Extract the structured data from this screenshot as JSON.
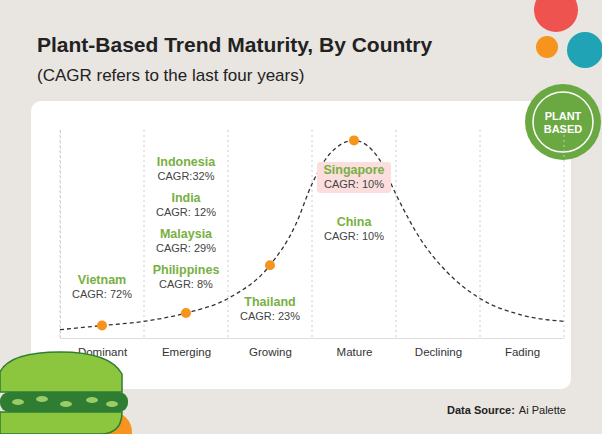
{
  "chart_data": {
    "type": "line",
    "title": "Plant-Based Trend Maturity, By Country",
    "subtitle": "(CAGR refers to the last four years)",
    "xlim": [
      0,
      6
    ],
    "xticks": [
      {
        "value": 0.5,
        "label": "Dominant"
      },
      {
        "value": 1.5,
        "label": "Emerging"
      },
      {
        "value": 2.5,
        "label": "Growing"
      },
      {
        "value": 3.5,
        "label": "Mature"
      },
      {
        "value": 4.5,
        "label": "Declining"
      },
      {
        "value": 5.5,
        "label": "Fading"
      }
    ],
    "ylim": [
      0,
      100
    ],
    "tick_labels": "x",
    "series": [
      {
        "type": "line",
        "line_style": "dashed",
        "color": "#333333",
        "x": [
          0,
          0.5,
          1,
          1.5,
          2,
          2.5,
          2.8,
          3,
          3.2,
          3.5,
          3.8,
          4,
          4.3,
          4.6,
          5,
          5.5,
          6
        ],
        "values": [
          4,
          6,
          8,
          12,
          19,
          35,
          54,
          74,
          88,
          95,
          86,
          69,
          47,
          32,
          19,
          11,
          8
        ]
      },
      {
        "type": "scatter",
        "marker": "circle",
        "color": "#f7941d",
        "x": [
          0.5,
          1.5,
          2.5,
          3.5
        ],
        "values": [
          6,
          12,
          35,
          95
        ]
      }
    ],
    "annotations": [
      {
        "country": "Vietnam",
        "category": "Dominant",
        "cagr": 72,
        "cagr_label": "CAGR: 72%"
      },
      {
        "country": "Indonesia",
        "category": "Emerging",
        "cagr": 32,
        "cagr_label": "CAGR:32%"
      },
      {
        "country": "India",
        "category": "Emerging",
        "cagr": 12,
        "cagr_label": "CAGR: 12%"
      },
      {
        "country": "Malaysia",
        "category": "Emerging",
        "cagr": 29,
        "cagr_label": "CAGR: 29%"
      },
      {
        "country": "Philippines",
        "category": "Emerging",
        "cagr": 8,
        "cagr_label": "CAGR: 8%"
      },
      {
        "country": "Thailand",
        "category": "Growing",
        "cagr": 23,
        "cagr_label": "CAGR: 23%"
      },
      {
        "country": "Singapore",
        "category": "Mature",
        "cagr": 10,
        "cagr_label": "CAGR: 10%",
        "color": "#fbdedd"
      },
      {
        "country": "China",
        "category": "Mature",
        "cagr": 10,
        "cagr_label": "CAGR: 10%"
      }
    ],
    "badge": [
      "PLANT",
      "BASED"
    ],
    "source": [
      "Data Source:",
      "Ai Palette"
    ]
  }
}
